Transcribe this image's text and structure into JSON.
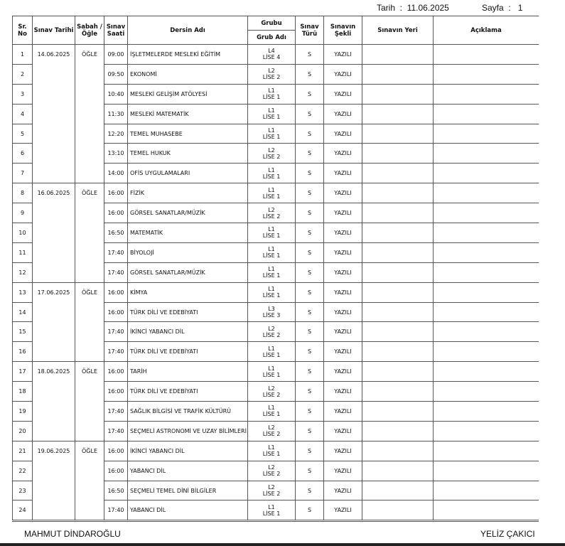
{
  "header": {
    "date_label": "Tarih",
    "date_value": "11.06.2025",
    "page_label": "Sayfa",
    "page_value": "1"
  },
  "columns": {
    "no": "Sr. No",
    "date": "Sınav Tarihi",
    "session": "Sabah / Öğle",
    "time": "Sınav Saati",
    "course": "Dersin Adı",
    "group": "Grubu",
    "group_name": "Grub Adı",
    "type": "Sınav Türü",
    "form": "Sınavın Şekli",
    "place": "Sınavın Yeri",
    "note": "Açıklama"
  },
  "groups": [
    {
      "date": "14.06.2025",
      "session": "ÖĞLE",
      "rows": [
        {
          "no": "1",
          "time": "09:00",
          "course": "İŞLETMELERDE MESLEKİ EĞİTİM",
          "g1": "L4",
          "g2": "LİSE 4",
          "type": "S",
          "form": "YAZILI"
        },
        {
          "no": "2",
          "time": "09:50",
          "course": "EKONOMİ",
          "g1": "L2",
          "g2": "LİSE 2",
          "type": "S",
          "form": "YAZILI"
        },
        {
          "no": "3",
          "time": "10:40",
          "course": "MESLEKİ GELİŞİM ATÖLYESİ",
          "g1": "L1",
          "g2": "LİSE 1",
          "type": "S",
          "form": "YAZILI"
        },
        {
          "no": "4",
          "time": "11:30",
          "course": "MESLEKİ MATEMATİK",
          "g1": "L1",
          "g2": "LİSE 1",
          "type": "S",
          "form": "YAZILI"
        },
        {
          "no": "5",
          "time": "12:20",
          "course": "TEMEL MUHASEBE",
          "g1": "L1",
          "g2": "LİSE 1",
          "type": "S",
          "form": "YAZILI"
        },
        {
          "no": "6",
          "time": "13:10",
          "course": "TEMEL HUKUK",
          "g1": "L2",
          "g2": "LİSE 2",
          "type": "S",
          "form": "YAZILI"
        },
        {
          "no": "7",
          "time": "14:00",
          "course": "OFİS UYGULAMALARI",
          "g1": "L1",
          "g2": "LİSE 1",
          "type": "S",
          "form": "YAZILI"
        }
      ]
    },
    {
      "date": "16.06.2025",
      "session": "ÖĞLE",
      "rows": [
        {
          "no": "8",
          "time": "16:00",
          "course": "FİZİK",
          "g1": "L1",
          "g2": "LİSE 1",
          "type": "S",
          "form": "YAZILI"
        },
        {
          "no": "9",
          "time": "16:00",
          "course": "GÖRSEL SANATLAR/MÜZİK",
          "g1": "L2",
          "g2": "LİSE 2",
          "type": "S",
          "form": "YAZILI"
        },
        {
          "no": "10",
          "time": "16:50",
          "course": "MATEMATİK",
          "g1": "L1",
          "g2": "LİSE 1",
          "type": "S",
          "form": "YAZILI"
        },
        {
          "no": "11",
          "time": "17:40",
          "course": "BİYOLOJİ",
          "g1": "L1",
          "g2": "LİSE 1",
          "type": "S",
          "form": "YAZILI"
        },
        {
          "no": "12",
          "time": "17:40",
          "course": "GÖRSEL SANATLAR/MÜZİK",
          "g1": "L1",
          "g2": "LİSE 1",
          "type": "S",
          "form": "YAZILI"
        }
      ]
    },
    {
      "date": "17.06.2025",
      "session": "ÖĞLE",
      "rows": [
        {
          "no": "13",
          "time": "16:00",
          "course": "KİMYA",
          "g1": "L1",
          "g2": "LİSE 1",
          "type": "S",
          "form": "YAZILI"
        },
        {
          "no": "14",
          "time": "16:00",
          "course": "TÜRK DİLİ VE EDEBİYATI",
          "g1": "L3",
          "g2": "LİSE 3",
          "type": "S",
          "form": "YAZILI"
        },
        {
          "no": "15",
          "time": "17:40",
          "course": "İKİNCİ YABANCI DİL",
          "g1": "L2",
          "g2": "LİSE 2",
          "type": "S",
          "form": "YAZILI"
        },
        {
          "no": "16",
          "time": "17:40",
          "course": "TÜRK DİLİ VE EDEBİYATI",
          "g1": "L1",
          "g2": "LİSE 1",
          "type": "S",
          "form": "YAZILI"
        }
      ]
    },
    {
      "date": "18.06.2025",
      "session": "ÖĞLE",
      "rows": [
        {
          "no": "17",
          "time": "16:00",
          "course": "TARİH",
          "g1": "L1",
          "g2": "LİSE 1",
          "type": "S",
          "form": "YAZILI"
        },
        {
          "no": "18",
          "time": "16:00",
          "course": "TÜRK DİLİ VE EDEBİYATI",
          "g1": "L2",
          "g2": "LİSE 2",
          "type": "S",
          "form": "YAZILI"
        },
        {
          "no": "19",
          "time": "17:40",
          "course": "SAĞLIK BİLGİSİ VE TRAFİK KÜLTÜRÜ",
          "g1": "L1",
          "g2": "LİSE 1",
          "type": "S",
          "form": "YAZILI"
        },
        {
          "no": "20",
          "time": "17:40",
          "course": "SEÇMELİ ASTRONOMİ VE UZAY BİLİMLERİ",
          "g1": "L2",
          "g2": "LİSE 2",
          "type": "S",
          "form": "YAZILI"
        }
      ]
    },
    {
      "date": "19.06.2025",
      "session": "ÖĞLE",
      "rows": [
        {
          "no": "21",
          "time": "16:00",
          "course": "İKİNCİ YABANCI DİL",
          "g1": "L1",
          "g2": "LİSE 1",
          "type": "S",
          "form": "YAZILI"
        },
        {
          "no": "22",
          "time": "16:00",
          "course": "YABANCI DİL",
          "g1": "L2",
          "g2": "LİSE 2",
          "type": "S",
          "form": "YAZILI"
        },
        {
          "no": "23",
          "time": "16:50",
          "course": "SEÇMELİ TEMEL DİNİ BİLGİLER",
          "g1": "L2",
          "g2": "LİSE 2",
          "type": "S",
          "form": "YAZILI"
        },
        {
          "no": "24",
          "time": "17:40",
          "course": "YABANCI DİL",
          "g1": "L1",
          "g2": "LİSE 1",
          "type": "S",
          "form": "YAZILI"
        }
      ]
    }
  ],
  "footer": {
    "left_signature": "MAHMUT DİNDAROĞLU",
    "right_signature": "YELİZ ÇAKICI"
  }
}
